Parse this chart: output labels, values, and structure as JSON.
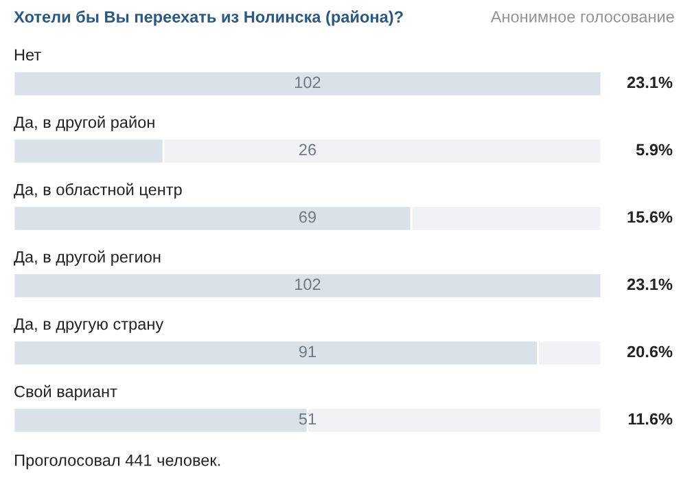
{
  "chart_data": {
    "type": "bar",
    "orientation": "horizontal",
    "title": "Хотели бы Вы переехать из Нолинска (района)?",
    "subtitle": "Анонимное голосование",
    "categories": [
      "Нет",
      "Да, в другой район",
      "Да, в областной центр",
      "Да, в другой регион",
      "Да, в другую страну",
      "Свой вариант"
    ],
    "values": [
      102,
      26,
      69,
      102,
      91,
      51
    ],
    "color": "#dae1e8",
    "data_labels": true,
    "tick_labels": false,
    "grid": false,
    "annotations": [
      "23.1%",
      "5.9%",
      "15.6%",
      "23.1%",
      "20.6%",
      "11.6%",
      "Проголосовал 441 человек."
    ]
  }
}
